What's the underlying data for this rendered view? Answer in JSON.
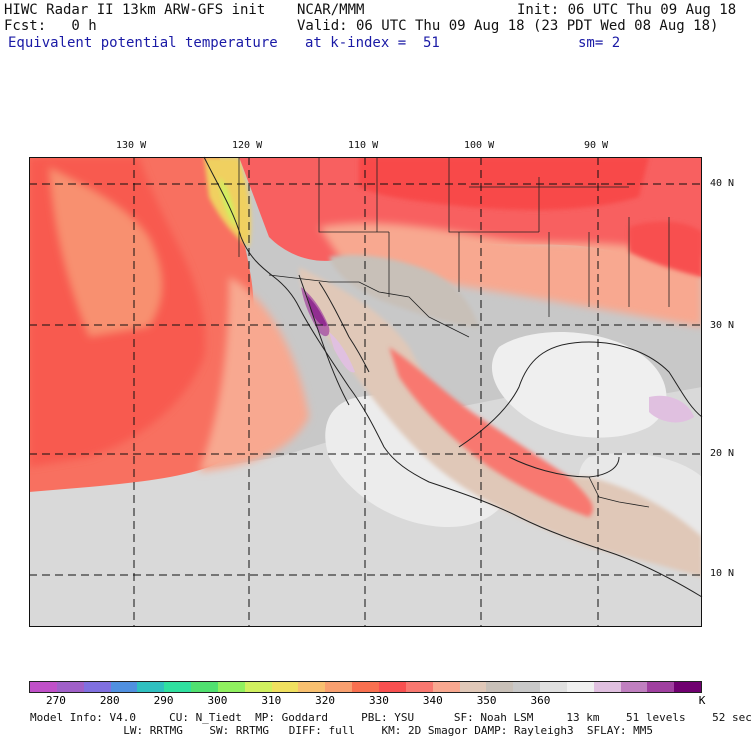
{
  "header": {
    "line1_left": "HIWC Radar II 13km ARW-GFS init",
    "line1_mid": "NCAR/MMM",
    "line1_right": "Init: 06 UTC Thu 09 Aug 18",
    "line2_left": "Fcst:   0 h",
    "line2_right": "Valid: 06 UTC Thu 09 Aug 18 (23 PDT Wed 08 Aug 18)",
    "line3_left": "Equivalent potential temperature",
    "line3_mid": "at k-index =  51",
    "line3_right": "sm= 2"
  },
  "map": {
    "lon_labels": [
      "130 W",
      "120 W",
      "110 W",
      "100 W",
      "90 W"
    ],
    "lat_labels": [
      "40 N",
      "30 N",
      "20 N",
      "10 N"
    ]
  },
  "colorbar": {
    "colors": [
      "#c050c8",
      "#a060c8",
      "#8070e0",
      "#5090e0",
      "#30c0c0",
      "#30e0a0",
      "#50e070",
      "#90f060",
      "#d0f060",
      "#f0e060",
      "#f8c070",
      "#f8a070",
      "#f87050",
      "#f85050",
      "#f87870",
      "#f8a890",
      "#e0c8b8",
      "#c8c0b8",
      "#c8c8c8",
      "#e0e0e0",
      "#f0f0f0",
      "#e0c0e0",
      "#c080c0",
      "#a040a0",
      "#700070"
    ],
    "labels": [
      "270",
      "280",
      "290",
      "300",
      "310",
      "320",
      "330",
      "340",
      "350",
      "360",
      "K"
    ]
  },
  "footer": {
    "line1": "Model Info: V4.0     CU: N_Tiedt  MP: Goddard     PBL: YSU      SF: Noah LSM     13 km    51 levels    52 sec",
    "line2": "  LW: RRTMG    SW: RRTMG   DIFF: full    KM: 2D Smagor DAMP: Rayleigh3  SFLAY: MM5"
  }
}
